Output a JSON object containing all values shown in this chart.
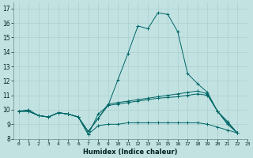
{
  "xlabel": "Humidex (Indice chaleur)",
  "bg_color": "#c2e2e2",
  "line_color": "#006666",
  "grid_color": "#aacece",
  "xlim": [
    -0.5,
    23
  ],
  "ylim": [
    8,
    17.4
  ],
  "xticks": [
    0,
    1,
    2,
    3,
    4,
    5,
    6,
    7,
    8,
    9,
    10,
    11,
    12,
    13,
    14,
    15,
    16,
    17,
    18,
    19,
    20,
    21,
    22,
    23
  ],
  "yticks": [
    8,
    9,
    10,
    11,
    12,
    13,
    14,
    15,
    16,
    17
  ],
  "series": [
    [
      9.9,
      10.0,
      9.6,
      9.5,
      9.8,
      9.7,
      9.5,
      8.3,
      9.7,
      10.3,
      12.1,
      13.9,
      15.8,
      15.6,
      16.7,
      16.6,
      15.4,
      12.5,
      11.8,
      11.2,
      9.9,
      9.2,
      8.4
    ],
    [
      9.9,
      9.9,
      9.6,
      9.5,
      9.8,
      9.7,
      9.5,
      8.5,
      9.4,
      10.4,
      10.5,
      10.6,
      10.7,
      10.8,
      10.9,
      11.0,
      11.1,
      11.2,
      11.3,
      11.1,
      9.9,
      9.0,
      8.4
    ],
    [
      9.9,
      9.9,
      9.6,
      9.5,
      9.8,
      9.7,
      9.5,
      8.5,
      9.4,
      10.3,
      10.4,
      10.5,
      10.6,
      10.7,
      10.8,
      10.85,
      10.9,
      11.0,
      11.1,
      11.0,
      9.9,
      9.1,
      8.4
    ],
    [
      9.9,
      9.9,
      9.6,
      9.5,
      9.8,
      9.7,
      9.5,
      8.3,
      8.9,
      9.0,
      9.0,
      9.1,
      9.1,
      9.1,
      9.1,
      9.1,
      9.1,
      9.1,
      9.1,
      9.0,
      8.8,
      8.6,
      8.4
    ]
  ]
}
